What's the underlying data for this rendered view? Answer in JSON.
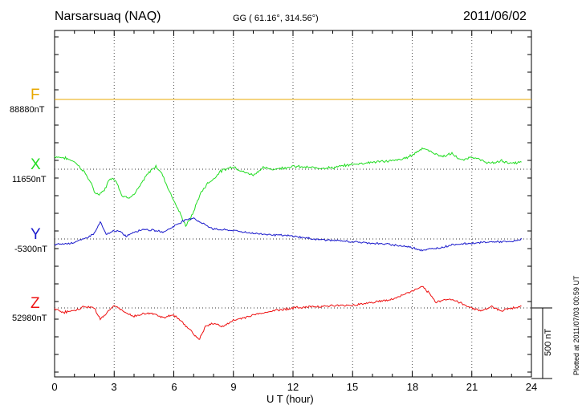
{
  "header": {
    "station": "Narsarsuaq (NAQ)",
    "coords": "GG ( 61.16°, 314.56°)",
    "date": "2011/06/02"
  },
  "footer": {
    "plotted": "Plotted at 2011/07/03 00:59 UT",
    "scale": "500 nT"
  },
  "colors": {
    "F": "#e8a800",
    "X": "#22dd22",
    "Y": "#1a1acc",
    "Z": "#ee1111"
  },
  "chart_data": {
    "type": "line",
    "title": "Narsarsuaq (NAQ)",
    "xlabel": "U T (hour)",
    "ylabel": "",
    "xlim": [
      0,
      24
    ],
    "x_ticks": [
      "0",
      "3",
      "6",
      "9",
      "12",
      "15",
      "18",
      "21",
      "24"
    ],
    "scale_nT": 500,
    "series": [
      {
        "name": "F",
        "label": "F",
        "baseline_label": "88880nT",
        "baseline_nT": 88880,
        "x": [
          0,
          24
        ],
        "values": [
          0,
          0
        ]
      },
      {
        "name": "X",
        "label": "X",
        "baseline_label": "11650nT",
        "baseline_nT": 11650,
        "x": [
          0,
          0.5,
          1.0,
          1.5,
          1.8,
          2.0,
          2.2,
          2.5,
          2.8,
          3.1,
          3.4,
          3.7,
          4.0,
          4.3,
          4.6,
          4.9,
          5.1,
          5.4,
          5.7,
          6.0,
          6.3,
          6.6,
          6.8,
          7.0,
          7.2,
          7.4,
          7.7,
          8.0,
          8.3,
          8.6,
          9.0,
          9.5,
          10.0,
          10.5,
          11.0,
          12.0,
          13.0,
          14.0,
          15.0,
          16.0,
          17.0,
          17.5,
          18.0,
          18.5,
          19.0,
          19.5,
          20.0,
          20.5,
          21.0,
          21.5,
          22.0,
          22.5,
          23.0,
          23.5
        ],
        "values": [
          90,
          80,
          55,
          -20,
          -90,
          -160,
          -180,
          -150,
          -60,
          -80,
          -190,
          -200,
          -180,
          -120,
          -50,
          0,
          20,
          -30,
          -130,
          -220,
          -310,
          -400,
          -360,
          -300,
          -220,
          -160,
          -100,
          -70,
          -20,
          0,
          20,
          -20,
          -40,
          10,
          0,
          20,
          10,
          10,
          35,
          50,
          60,
          70,
          100,
          150,
          120,
          90,
          110,
          60,
          90,
          60,
          40,
          60,
          40,
          50
        ]
      },
      {
        "name": "Y",
        "label": "Y",
        "baseline_label": "-5300nT",
        "baseline_nT": -5300,
        "x": [
          0,
          0.8,
          1.5,
          2.0,
          2.3,
          2.6,
          3.0,
          3.3,
          3.6,
          4.0,
          4.5,
          5.0,
          5.5,
          6.0,
          6.5,
          7.0,
          7.3,
          7.6,
          8.0,
          9.0,
          10.0,
          11.0,
          12.0,
          13.0,
          14.0,
          15.0,
          16.0,
          17.0,
          18.0,
          18.5,
          19.0,
          19.5,
          20.0,
          21.0,
          22.0,
          23.0,
          23.5
        ],
        "values": [
          -40,
          -30,
          0,
          40,
          120,
          30,
          60,
          50,
          20,
          50,
          70,
          60,
          50,
          90,
          130,
          150,
          120,
          100,
          70,
          60,
          40,
          30,
          20,
          0,
          -10,
          -20,
          -30,
          -40,
          -60,
          -80,
          -70,
          -60,
          -40,
          -30,
          -20,
          -20,
          0
        ]
      },
      {
        "name": "Z",
        "label": "Z",
        "baseline_label": "52980nT",
        "baseline_nT": 52980,
        "x": [
          0,
          0.5,
          1.0,
          1.5,
          2.0,
          2.3,
          2.6,
          3.0,
          3.5,
          4.0,
          4.5,
          5.0,
          5.5,
          6.0,
          6.5,
          6.8,
          7.0,
          7.3,
          7.6,
          8.0,
          8.5,
          9.0,
          10.0,
          11.0,
          12.0,
          13.0,
          14.0,
          15.0,
          16.0,
          17.0,
          18.0,
          18.5,
          18.8,
          19.2,
          19.6,
          20.0,
          20.5,
          21.0,
          21.5,
          22.0,
          22.5,
          23.0,
          23.5
        ],
        "values": [
          -10,
          -30,
          -20,
          10,
          0,
          -80,
          -40,
          20,
          -30,
          -60,
          -40,
          -40,
          -70,
          -50,
          -110,
          -150,
          -190,
          -220,
          -130,
          -110,
          -130,
          -90,
          -50,
          -20,
          0,
          10,
          15,
          20,
          40,
          60,
          120,
          150,
          110,
          40,
          60,
          60,
          30,
          0,
          -20,
          10,
          -20,
          0,
          10
        ]
      }
    ]
  }
}
